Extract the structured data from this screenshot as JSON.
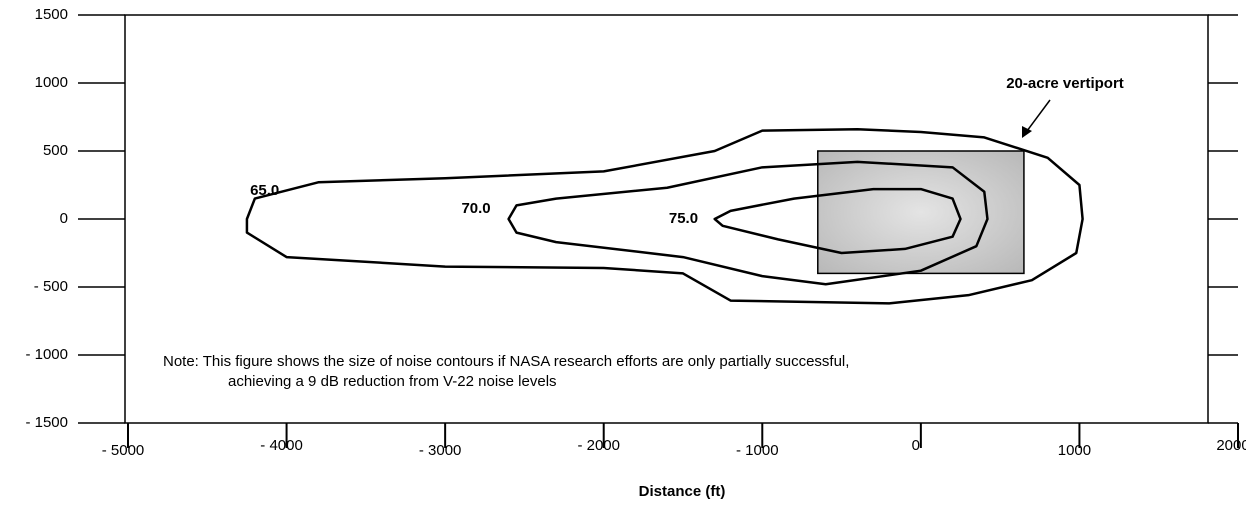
{
  "chart_data": {
    "type": "contour",
    "x_label": "Distance (ft)",
    "xlim": [
      -5000,
      2000
    ],
    "ylim": [
      -1500,
      1500
    ],
    "xticks": [
      {
        "value": -5000,
        "label": "- 5000"
      },
      {
        "value": -4000,
        "label": "- 4000"
      },
      {
        "value": -3000,
        "label": "- 3000"
      },
      {
        "value": -2000,
        "label": "- 2000"
      },
      {
        "value": -1000,
        "label": "- 1000"
      },
      0,
      1000,
      2000
    ],
    "yticks": [
      {
        "value": -1500,
        "label": "- 1500"
      },
      {
        "value": -1000,
        "label": "- 1000"
      },
      {
        "value": -500,
        "label": "- 500"
      },
      0,
      500,
      1000,
      1500
    ],
    "color": "#000000",
    "series": [
      {
        "name": "65.0",
        "x": [
          -4250,
          -4200,
          -3800,
          -3000,
          -2000,
          -1300,
          -1000,
          -400,
          0,
          400,
          800,
          1000,
          1020,
          980,
          700,
          300,
          -200,
          -1200,
          -1500,
          -2000,
          -3000,
          -4000,
          -4250
        ],
        "y": [
          0,
          150,
          270,
          300,
          350,
          500,
          650,
          660,
          640,
          600,
          450,
          250,
          0,
          -250,
          -450,
          -560,
          -620,
          -600,
          -400,
          -360,
          -350,
          -280,
          -100
        ]
      },
      {
        "name": "70.0",
        "x": [
          -2600,
          -2550,
          -2300,
          -1600,
          -1000,
          -400,
          200,
          400,
          420,
          350,
          0,
          -600,
          -1000,
          -1500,
          -2300,
          -2550
        ],
        "y": [
          0,
          100,
          150,
          230,
          380,
          420,
          380,
          200,
          0,
          -200,
          -380,
          -480,
          -420,
          -280,
          -170,
          -100
        ]
      },
      {
        "name": "75.0",
        "x": [
          -1300,
          -1200,
          -800,
          -300,
          0,
          200,
          250,
          200,
          -100,
          -500,
          -900,
          -1250
        ],
        "y": [
          0,
          60,
          150,
          220,
          220,
          150,
          0,
          -130,
          -220,
          -250,
          -150,
          -50
        ]
      }
    ],
    "vertiport": {
      "label": "20-acre vertiport",
      "x": [
        -650,
        650
      ],
      "y": [
        -400,
        500
      ],
      "color": "#c4c4c4"
    },
    "note": [
      "Note: This figure shows the size of noise contours if NASA research efforts are only partially successful,",
      "achieving a 9 dB reduction from V-22 noise levels"
    ]
  }
}
